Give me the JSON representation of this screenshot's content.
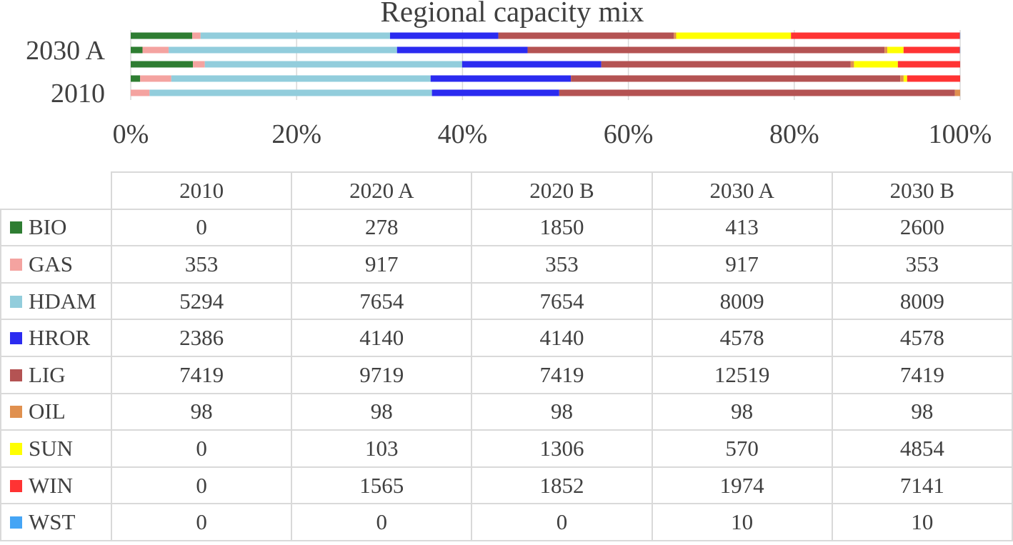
{
  "chart_data": {
    "type": "stacked-bar-horizontal-100",
    "title": "Regional capacity mix",
    "categories": [
      "2010",
      "2020 A",
      "2020 B",
      "2030 A",
      "2030 B"
    ],
    "visible_y_tick_labels": [
      "2010",
      "2030 A"
    ],
    "x_tick_labels": [
      "0%",
      "20%",
      "40%",
      "60%",
      "80%",
      "100%"
    ],
    "xlim": [
      0,
      100
    ],
    "grid": "vertical",
    "legend": "table-below",
    "series": [
      {
        "name": "BIO",
        "color": "#2e7d32",
        "values": [
          0,
          278,
          1850,
          413,
          2600
        ]
      },
      {
        "name": "GAS",
        "color": "#f4a3a0",
        "values": [
          353,
          917,
          353,
          917,
          353
        ]
      },
      {
        "name": "HDAM",
        "color": "#92cddc",
        "values": [
          5294,
          7654,
          7654,
          8009,
          8009
        ]
      },
      {
        "name": "HROR",
        "color": "#2b2bf0",
        "values": [
          2386,
          4140,
          4140,
          4578,
          4578
        ]
      },
      {
        "name": "LIG",
        "color": "#b45353",
        "values": [
          7419,
          9719,
          7419,
          12519,
          7419
        ]
      },
      {
        "name": "OIL",
        "color": "#e0904f",
        "values": [
          98,
          98,
          98,
          98,
          98
        ]
      },
      {
        "name": "SUN",
        "color": "#ffff00",
        "values": [
          0,
          103,
          1306,
          570,
          4854
        ]
      },
      {
        "name": "WIN",
        "color": "#ff3333",
        "values": [
          0,
          1565,
          1852,
          1974,
          7141
        ]
      },
      {
        "name": "WST",
        "color": "#45a5f5",
        "values": [
          0,
          0,
          0,
          10,
          10
        ]
      }
    ]
  }
}
